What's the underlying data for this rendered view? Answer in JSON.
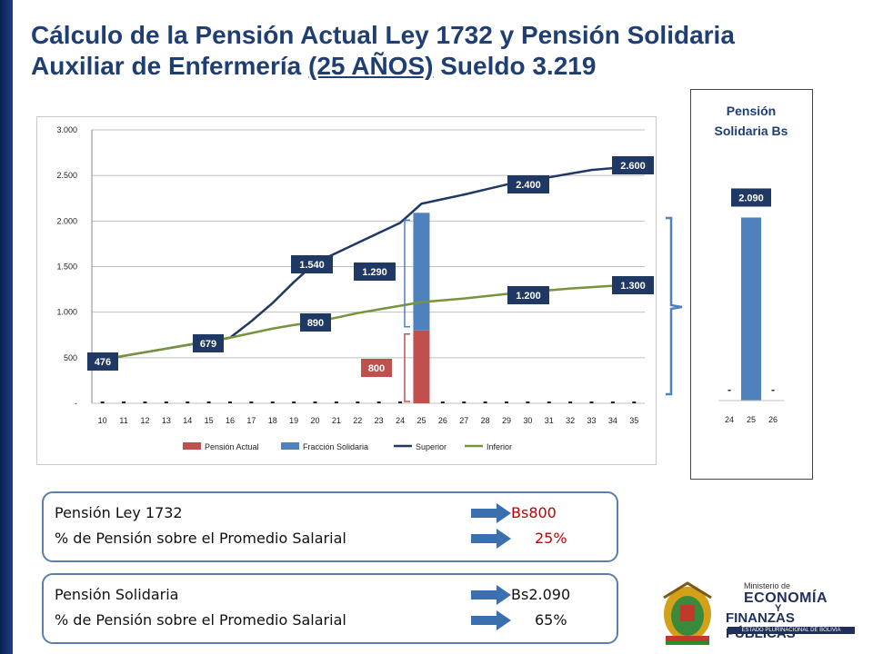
{
  "title": {
    "line1": "Cálculo de la Pensión Actual Ley 1732 y Pensión Solidaria",
    "line2_prefix": "Auxiliar de Enfermería ",
    "line2_underlined": "(25 AÑOS)",
    "line2_suffix": " Sueldo 3.219"
  },
  "chart_data": [
    {
      "type": "bar",
      "categories": [
        "10",
        "11",
        "12",
        "13",
        "14",
        "15",
        "16",
        "17",
        "18",
        "19",
        "20",
        "21",
        "22",
        "23",
        "24",
        "25",
        "26",
        "27",
        "28",
        "29",
        "30",
        "31",
        "32",
        "33",
        "34",
        "35"
      ],
      "ylim": [
        0,
        3000
      ],
      "y_ticks": [
        0,
        500,
        1000,
        1500,
        2000,
        2500,
        3000
      ],
      "y_tick_labels": [
        "-",
        "500",
        "1.000",
        "1.500",
        "2.000",
        "2.500",
        "3.000"
      ],
      "grid": true,
      "legend_position": "bottom",
      "series": [
        {
          "name": "Pensión Actual",
          "type": "bar",
          "color": "#c0504d",
          "values": [
            0,
            0,
            0,
            0,
            0,
            0,
            0,
            0,
            0,
            0,
            0,
            0,
            0,
            0,
            0,
            800,
            0,
            0,
            0,
            0,
            0,
            0,
            0,
            0,
            0,
            0
          ]
        },
        {
          "name": "Fracción Solidaria",
          "type": "bar",
          "color": "#4f81bd",
          "values": [
            0,
            0,
            0,
            0,
            0,
            0,
            0,
            0,
            0,
            0,
            0,
            0,
            0,
            0,
            0,
            1290,
            0,
            0,
            0,
            0,
            0,
            0,
            0,
            0,
            0,
            0
          ]
        },
        {
          "name": "Superior",
          "type": "line",
          "color": "#1f3864",
          "values": [
            476,
            520,
            560,
            600,
            640,
            679,
            720,
            900,
            1100,
            1330,
            1540,
            1650,
            1760,
            1870,
            1980,
            2190,
            2240,
            2290,
            2345,
            2400,
            2440,
            2480,
            2520,
            2560,
            2580,
            2600
          ]
        },
        {
          "name": "Inferior",
          "type": "line",
          "color": "#77933c",
          "values": [
            476,
            520,
            560,
            600,
            640,
            679,
            720,
            770,
            820,
            860,
            890,
            940,
            990,
            1030,
            1070,
            1110,
            1130,
            1150,
            1175,
            1200,
            1220,
            1240,
            1260,
            1275,
            1290,
            1300
          ]
        }
      ],
      "data_labels": [
        {
          "text": "476",
          "style": "dark"
        },
        {
          "text": "679",
          "style": "dark"
        },
        {
          "text": "1.540",
          "style": "dark"
        },
        {
          "text": "890",
          "style": "dark"
        },
        {
          "text": "1.290",
          "style": "dark"
        },
        {
          "text": "800",
          "style": "red"
        },
        {
          "text": "2.400",
          "style": "dark"
        },
        {
          "text": "1.200",
          "style": "dark"
        },
        {
          "text": "2.600",
          "style": "dark"
        },
        {
          "text": "1.300",
          "style": "dark"
        }
      ]
    },
    {
      "type": "bar",
      "title": "Pensión Solidaria Bs",
      "categories": [
        "24",
        "25",
        "26"
      ],
      "values": [
        0,
        2090,
        0
      ],
      "value_labels": [
        "-",
        "2.090",
        "-"
      ],
      "color": "#4f81bd",
      "ylim": [
        0,
        2800
      ]
    }
  ],
  "info_boxes": [
    {
      "label1": "Pensión Ley 1732",
      "value1": "Bs800",
      "label2": "% de Pensión sobre el Promedio Salarial",
      "value2": "25%",
      "value_color": "#c00000"
    },
    {
      "label1": "Pensión Solidaria",
      "value1": "Bs2.090",
      "label2": "% de Pensión sobre el Promedio Salarial",
      "value2": "65%",
      "value_color": "#111111"
    }
  ],
  "logo": {
    "line1": "Ministerio de",
    "line2": "ECONOMÍA",
    "line3": "Y",
    "line4": "FINANZAS PÚBLICAS",
    "line5": "ESTADO PLURINACIONAL DE BOLIVIA"
  },
  "colors": {
    "title": "#1f3f74",
    "dark_label": "#1f3864",
    "red_label": "#c0504d",
    "accent_arrow": "#3a6fb0",
    "box_border": "#5b7fa8"
  }
}
